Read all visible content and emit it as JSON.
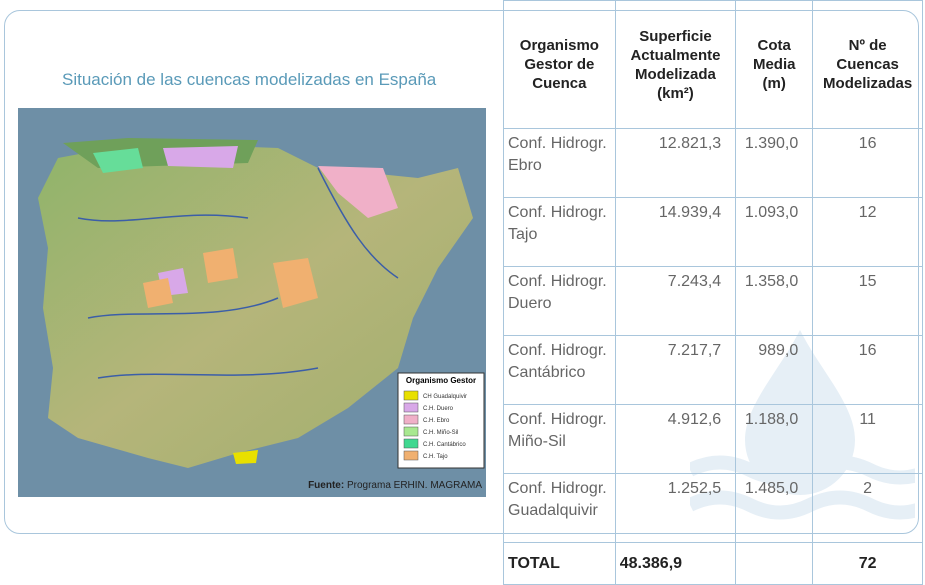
{
  "panel": {
    "title": "Situación de las cuencas modelizadas en España",
    "legend": {
      "title": "Organismo Gestor",
      "items": [
        "CH Guadalquivir",
        "C.H. Duero",
        "C.H. Ebro",
        "C.H. Miño-Sil",
        "C.H. Cantábrico",
        "C.H. Tajo"
      ]
    },
    "source_label": "Fuente:",
    "source": "Programa ERHIN. MAGRAMA"
  },
  "table": {
    "header": [
      "Organismo Gestor de Cuenca",
      "Superficie Actualmente Modelizada (km²)",
      "Cota Media (m)",
      "Nº de Cuencas Modelizadas"
    ],
    "rows": [
      [
        "Conf. Hidrogr. Ebro",
        "12.821,3",
        "1.390,0",
        "16"
      ],
      [
        "Conf. Hidrogr. Tajo",
        "14.939,4",
        "1.093,0",
        "12"
      ],
      [
        "Conf. Hidrogr. Duero",
        "7.243,4",
        "1.358,0",
        "15"
      ],
      [
        "Conf. Hidrogr. Cantábrico",
        "7.217,7",
        "989,0",
        "16"
      ],
      [
        "Conf. Hidrogr. Miño-Sil",
        "4.912,6",
        "1.188,0",
        "11"
      ],
      [
        "Conf. Hidrogr. Guadalquivir",
        "1.252,5",
        "1.485,0",
        "2"
      ]
    ],
    "total": [
      "TOTAL",
      "48.386,9",
      "",
      "72"
    ]
  }
}
